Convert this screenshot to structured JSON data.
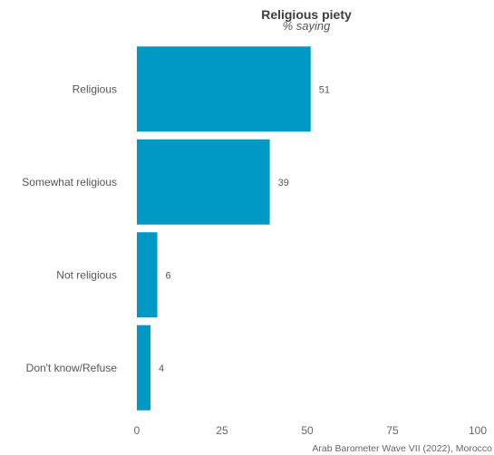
{
  "chart_data": {
    "type": "bar",
    "orientation": "horizontal",
    "title": "Religious piety",
    "subtitle": "% saying",
    "categories": [
      "Religious",
      "Somewhat religious",
      "Not religious",
      "Don't know/Refuse"
    ],
    "values": [
      51,
      39,
      6,
      4
    ],
    "value_labels": [
      "51",
      "39",
      "6",
      "4"
    ],
    "xlim": [
      0,
      100
    ],
    "xticks": [
      0,
      25,
      50,
      75,
      100
    ],
    "xtick_labels": [
      "0",
      "25",
      "50",
      "75",
      "100"
    ],
    "xlabel": "",
    "ylabel": "",
    "grid": false,
    "legend": "none",
    "bar_color": "#0099c6",
    "caption": "Arab Barometer Wave VII (2022), Morocco"
  }
}
